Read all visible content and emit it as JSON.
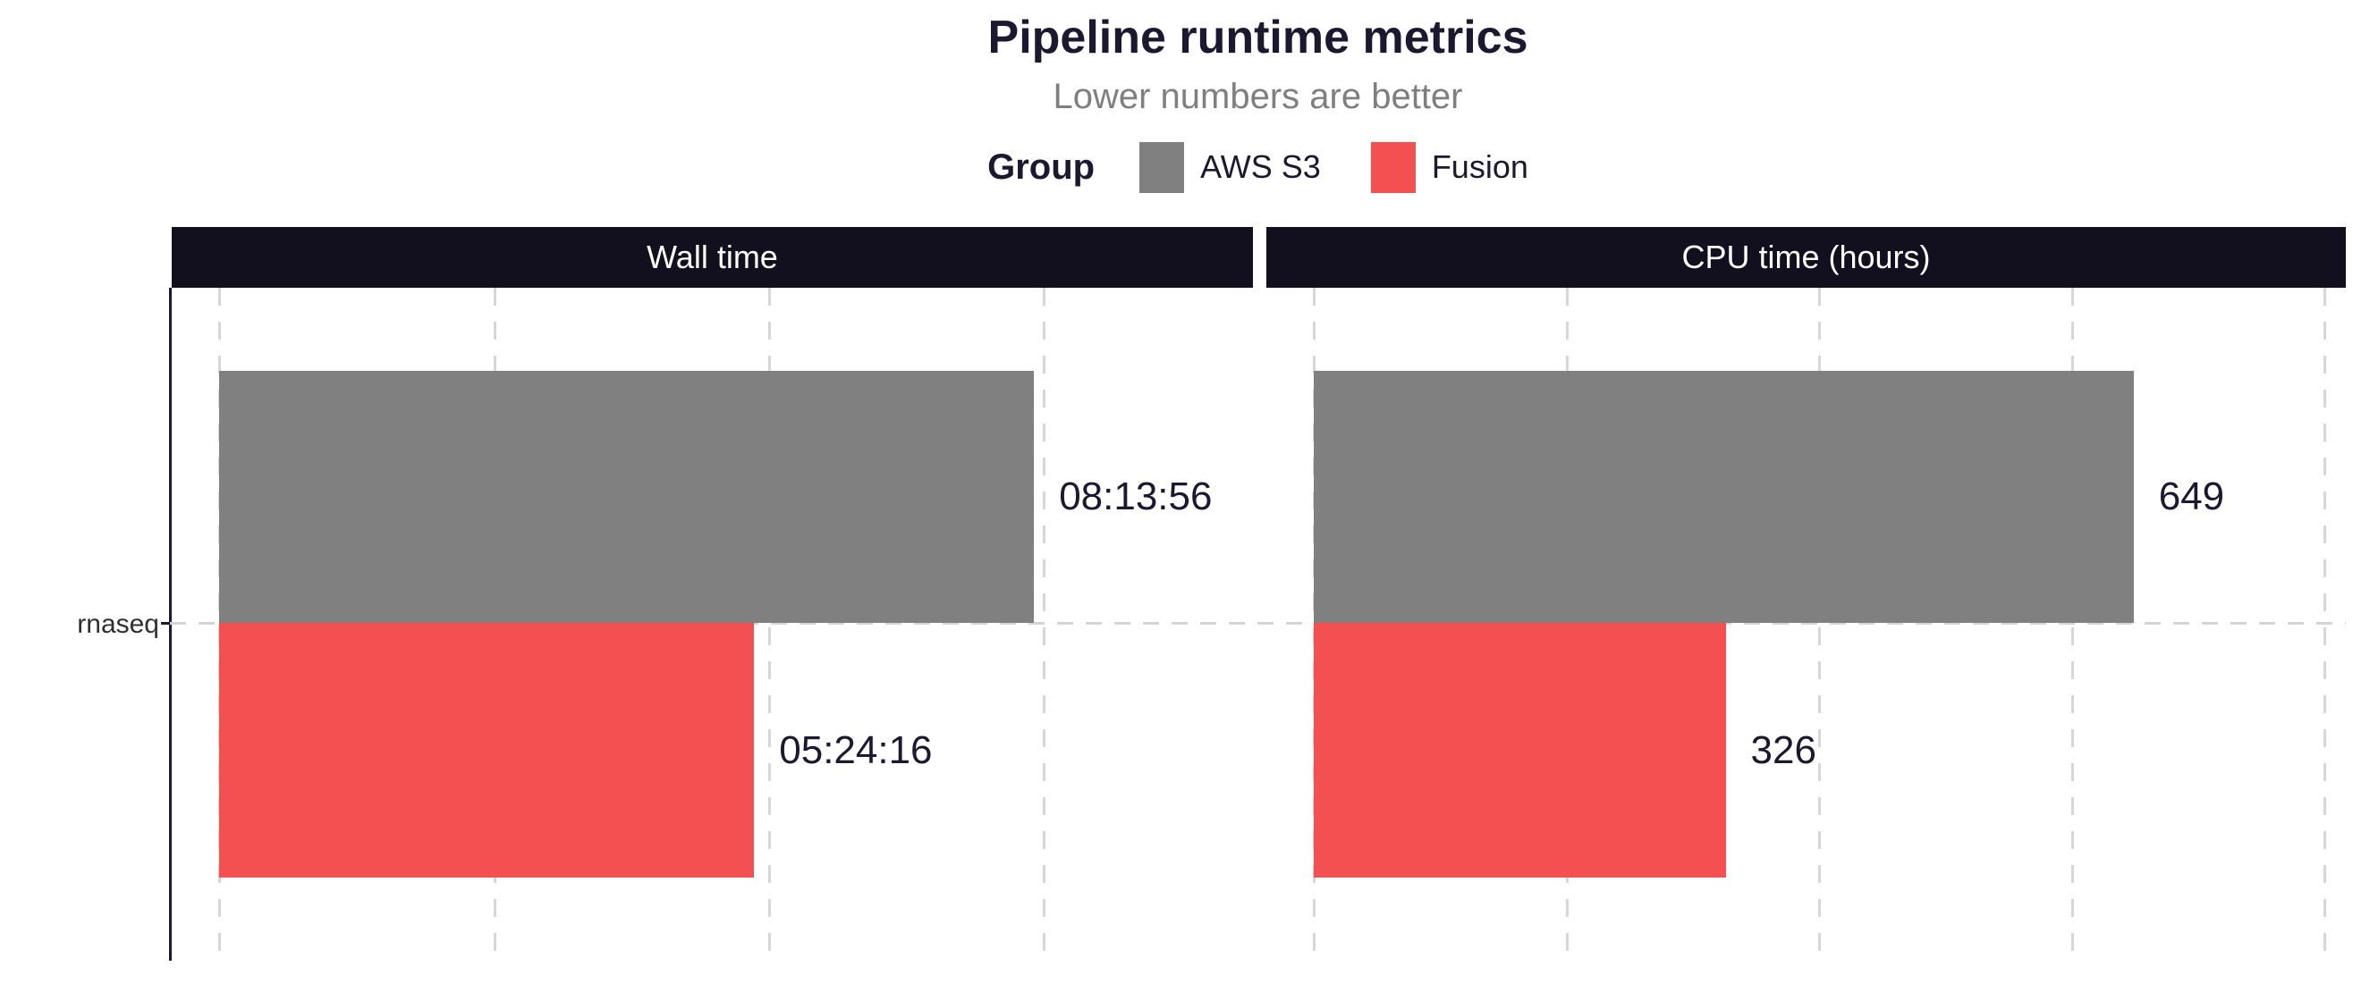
{
  "header": {
    "title": "Pipeline runtime metrics",
    "subtitle": "Lower numbers are better"
  },
  "legend": {
    "title": "Group",
    "items": [
      {
        "label": "AWS S3",
        "color": "#808080"
      },
      {
        "label": "Fusion",
        "color": "#f45052"
      }
    ]
  },
  "y_axis": {
    "category_label": "rnaseq"
  },
  "chart_data": {
    "type": "bar",
    "orientation": "horizontal",
    "title": "Pipeline runtime metrics",
    "subtitle": "Lower numbers are better",
    "legend_title": "Group",
    "legend_position": "top",
    "grid": "dashed",
    "categories": [
      "rnaseq"
    ],
    "series": [
      {
        "name": "AWS S3",
        "color": "#808080"
      },
      {
        "name": "Fusion",
        "color": "#f45052"
      }
    ],
    "panels": [
      {
        "title": "Wall time",
        "unit": "seconds",
        "values": [
          29636,
          19456
        ],
        "labels": [
          "08:13:56",
          "05:24:16"
        ],
        "axis_max": 37600,
        "gridline_values": [
          0,
          10000,
          20000,
          30000
        ]
      },
      {
        "title": "CPU time (hours)",
        "unit": "hours",
        "values": [
          649,
          326
        ],
        "labels": [
          "649",
          "326"
        ],
        "axis_max": 817,
        "gridline_values": [
          0,
          200,
          400,
          600,
          800
        ]
      }
    ]
  },
  "colors": {
    "strip_background": "#120f1e",
    "title_text": "#1b1830",
    "subtitle_text": "#7f7f7f",
    "gridline": "#d6d6d6",
    "axis_line": "#1b1830",
    "bar_label_text": "#1b1830",
    "strip_text": "#ffffff"
  }
}
